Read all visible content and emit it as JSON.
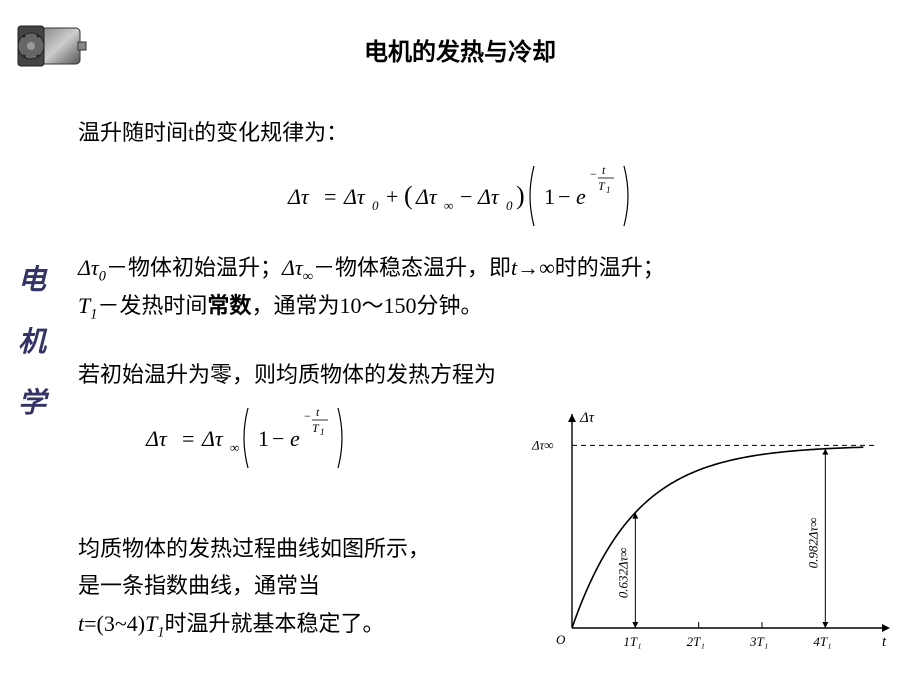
{
  "title": "电机的发热与冷却",
  "sideLabel": {
    "c1": "电",
    "c2": "机",
    "c3": "学"
  },
  "para1": "温升随时间t的变化规律为：",
  "formula1_svg_labels": {
    "dtau": "Δτ",
    "eq": "=",
    "dtau0": "Δτ",
    "sub0a": "0",
    "plus": "+",
    "lparen": "(",
    "dtauinf": "Δτ",
    "subinf": "∞",
    "minus": "−",
    "dtau0b": "Δτ",
    "sub0b": "0",
    "rparen": ")",
    "one": "1",
    "minus2": "−",
    "e": "e",
    "negfrac_top": "t",
    "negfrac_bot": "T",
    "negfrac_bot_sub": "1",
    "neg": "−"
  },
  "para2_parts": {
    "p1": "Δτ",
    "p1sub": "0",
    "p2": "－物体初始温升；",
    "p3": "Δτ",
    "p3sub": "∞",
    "p4": "－物体稳态温升，即",
    "p5": "t",
    "p6": "→∞时的温升；",
    "p7": "T",
    "p7sub": "1",
    "p8": "－发热时间",
    "p9": "常数",
    "p10": "，通常为10～150分钟。"
  },
  "para3": "若初始温升为零，则均质物体的发热方程为",
  "formula2_svg_labels": {
    "dtau": "Δτ",
    "eq": "=",
    "dtauinf": "Δτ",
    "subinf": "∞",
    "one": "1",
    "minus": "−",
    "e": "e",
    "neg": "−",
    "t": "t",
    "T": "T",
    "T1": "1"
  },
  "para4_l1": "均质物体的发热过程曲线如图所示，",
  "para4_l2": "是一条指数曲线，通常当",
  "para4_l3a": "t",
  "para4_l3b": "=(3~4)",
  "para4_l3c": "T",
  "para4_l3csub": "1",
  "para4_l3d": "时温升就基本稳定了。",
  "chart": {
    "type": "line",
    "xlabel": "t",
    "ylabel": "Δτ",
    "asymptote_label": "Δτ∞",
    "xticks": [
      "1T₁",
      "2T₁",
      "3T₁",
      "4T₁"
    ],
    "origin_label": "O",
    "marker1_label": "0.632Δτ∞",
    "marker2_label": "0.982Δτ∞",
    "curve_points_x": [
      0,
      0.25,
      0.5,
      0.75,
      1,
      1.5,
      2,
      2.5,
      3,
      3.5,
      4,
      4.5
    ],
    "curve_points_y": [
      0,
      0.221,
      0.393,
      0.528,
      0.632,
      0.777,
      0.865,
      0.918,
      0.95,
      0.97,
      0.982,
      0.989
    ],
    "asymptote_y": 1.0,
    "xlim": [
      0,
      4.8
    ],
    "ylim": [
      0,
      1.15
    ],
    "colors": {
      "axis": "#000000",
      "curve": "#000000",
      "dash": "#000000",
      "bg": "#ffffff"
    },
    "line_width": 1.6,
    "font_size": 13
  }
}
